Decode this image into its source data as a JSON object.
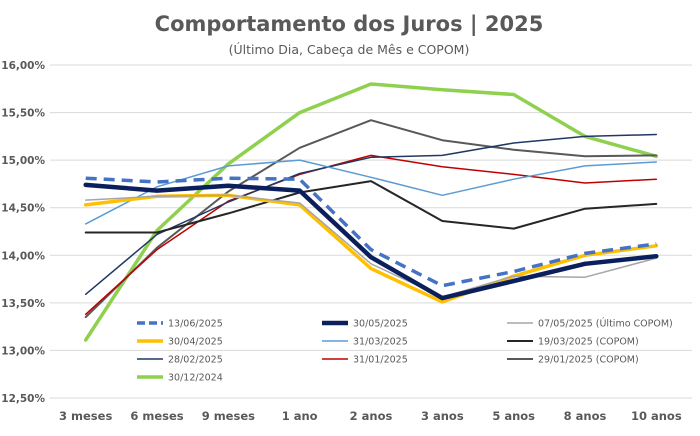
{
  "chart_data": {
    "type": "line",
    "title": "Comportamento dos Juros | 2025",
    "subtitle": "(Último Dia, Cabeça de Mês e COPOM)",
    "categories": [
      "3 meses",
      "6 meses",
      "9 meses",
      "1 ano",
      "2 anos",
      "3 anos",
      "5 anos",
      "8 anos",
      "10 anos"
    ],
    "ylim": [
      12.5,
      16.0
    ],
    "yticks": [
      12.5,
      13.0,
      13.5,
      14.0,
      14.5,
      15.0,
      15.5,
      16.0
    ],
    "ytick_labels": [
      "12,50%",
      "13,00%",
      "13,50%",
      "14,00%",
      "14,50%",
      "15,00%",
      "15,50%",
      "16,00%"
    ],
    "grid": true,
    "legend_position": "bottom-inside",
    "series": [
      {
        "name": "13/06/2025",
        "color": "#4472c4",
        "style": "dashed",
        "width": 3.5,
        "values": [
          14.81,
          14.77,
          14.81,
          14.8,
          14.06,
          13.68,
          13.83,
          14.02,
          14.12
        ]
      },
      {
        "name": "30/05/2025",
        "color": "#0a1f5c",
        "style": "solid",
        "width": 4.5,
        "values": [
          14.74,
          14.68,
          14.73,
          14.68,
          13.98,
          13.55,
          13.73,
          13.91,
          13.99
        ]
      },
      {
        "name": "07/05/2025 (Último COPOM)",
        "color": "#a6a6a6",
        "style": "solid",
        "width": 1.5,
        "values": [
          14.58,
          14.62,
          14.63,
          14.55,
          13.91,
          13.56,
          13.78,
          13.77,
          13.97
        ]
      },
      {
        "name": "30/04/2025",
        "color": "#ffc000",
        "style": "solid",
        "width": 3.5,
        "values": [
          14.53,
          14.62,
          14.63,
          14.53,
          13.86,
          13.51,
          13.78,
          14.0,
          14.1
        ]
      },
      {
        "name": "31/03/2025",
        "color": "#5b9bd5",
        "style": "solid",
        "width": 1.5,
        "values": [
          14.33,
          14.72,
          14.94,
          15.0,
          14.82,
          14.63,
          14.8,
          14.94,
          14.98
        ]
      },
      {
        "name": "19/03/2025 (COPOM)",
        "color": "#262626",
        "style": "solid",
        "width": 2,
        "values": [
          14.24,
          14.24,
          14.44,
          14.66,
          14.78,
          14.36,
          14.28,
          14.49,
          14.54
        ]
      },
      {
        "name": "28/02/2025",
        "color": "#203864",
        "style": "solid",
        "width": 1.5,
        "values": [
          13.59,
          14.22,
          14.56,
          14.86,
          15.03,
          15.05,
          15.18,
          15.25,
          15.27
        ]
      },
      {
        "name": "31/01/2025",
        "color": "#c00000",
        "style": "solid",
        "width": 1.5,
        "values": [
          13.38,
          14.06,
          14.57,
          14.85,
          15.05,
          14.93,
          14.85,
          14.76,
          14.8
        ]
      },
      {
        "name": "29/01/2025 (COPOM)",
        "color": "#595959",
        "style": "solid",
        "width": 2,
        "values": [
          13.35,
          14.08,
          14.67,
          15.13,
          15.42,
          15.21,
          15.11,
          15.04,
          15.05
        ]
      },
      {
        "name": "30/12/2024",
        "color": "#8fd14f",
        "style": "solid",
        "width": 3.5,
        "values": [
          13.11,
          14.26,
          14.96,
          15.5,
          15.8,
          15.74,
          15.69,
          15.25,
          15.04
        ]
      }
    ]
  }
}
